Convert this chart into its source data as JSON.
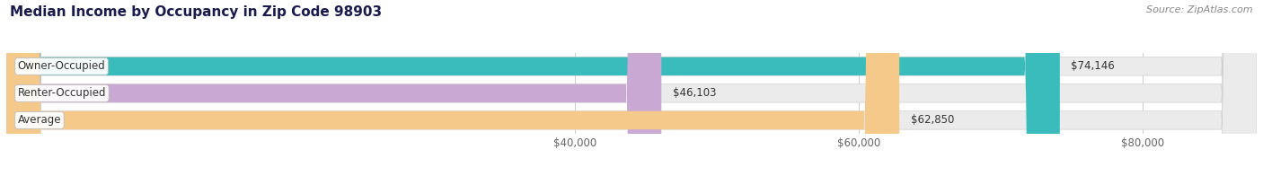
{
  "title": "Median Income by Occupancy in Zip Code 98903",
  "source": "Source: ZipAtlas.com",
  "categories": [
    "Owner-Occupied",
    "Renter-Occupied",
    "Average"
  ],
  "values": [
    74146,
    46103,
    62850
  ],
  "labels": [
    "$74,146",
    "$46,103",
    "$62,850"
  ],
  "bar_colors": [
    "#3bbcbc",
    "#c9a8d4",
    "#f5c98a"
  ],
  "xlim_min": 0,
  "xlim_max": 88000,
  "xticks": [
    40000,
    60000,
    80000
  ],
  "xticklabels": [
    "$40,000",
    "$60,000",
    "$80,000"
  ],
  "title_fontsize": 11,
  "source_fontsize": 8,
  "bar_label_fontsize": 8.5,
  "category_fontsize": 8.5,
  "tick_fontsize": 8.5,
  "bar_bg_color": "#ebebeb",
  "grid_color": "#cccccc",
  "text_color": "#333333",
  "source_color": "#888888"
}
